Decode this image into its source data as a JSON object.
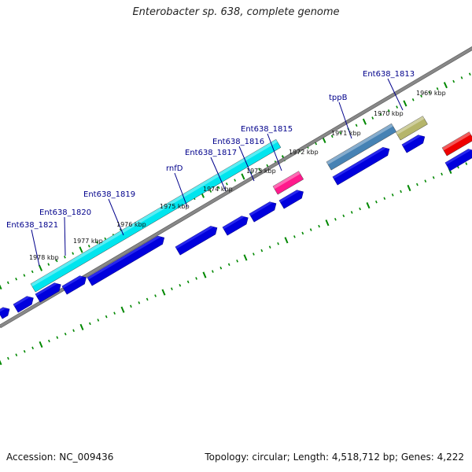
{
  "title": "Enterobacter sp. 638, complete genome",
  "footer": {
    "accession": "Accession: NC_009436",
    "topology": "Topology: circular; Length: 4,518,712 bp; Genes: 4,222"
  },
  "tick_labels": [
    {
      "text": "1978 kbp"
    },
    {
      "text": "1977 kbp"
    },
    {
      "text": "1976 kbp"
    },
    {
      "text": "1975 kbp"
    },
    {
      "text": "1974 kbp"
    },
    {
      "text": "1973 kbp"
    },
    {
      "text": "1972 kbp"
    },
    {
      "text": "1971 kbp"
    },
    {
      "text": "1970 kbp"
    },
    {
      "text": "1969 kbp"
    }
  ],
  "gene_labels": [
    {
      "text": "Ent638_1821"
    },
    {
      "text": "Ent638_1820"
    },
    {
      "text": "Ent638_1819"
    },
    {
      "text": "rnfD"
    },
    {
      "text": "Ent638_1817"
    },
    {
      "text": "Ent638_1816"
    },
    {
      "text": "Ent638_1815"
    },
    {
      "text": "tppB"
    },
    {
      "text": "Ent638_1813"
    }
  ],
  "colors": {
    "backbone": "#888888",
    "cds": "#0000dd",
    "tick": "#008800",
    "gene_label": "#00008b",
    "feature_cyan": "#00e5ee",
    "feature_magenta": "#ff1a8c",
    "feature_steelblue": "#4682b4",
    "feature_khaki": "#b5b56a",
    "feature_red": "#ee0000"
  }
}
